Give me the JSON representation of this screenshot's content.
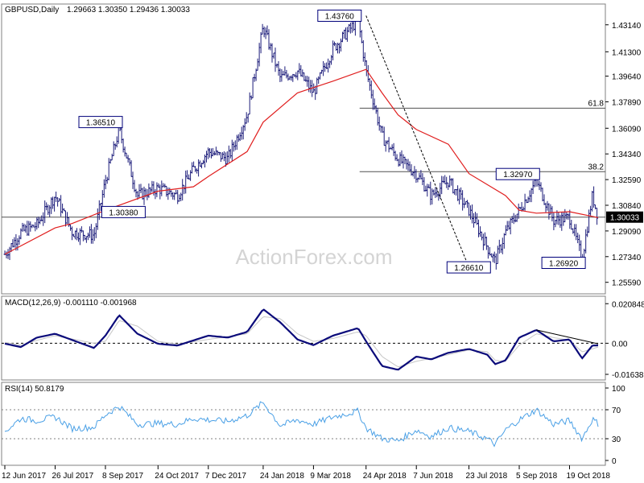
{
  "main_header": {
    "symbol": "GBPUSD,Daily",
    "ohlc": "1.29663 1.30350 1.29436 1.30033"
  },
  "macd_header": "MACD(12,26,9) -0.001110 -0.001968",
  "rsi_header": "RSI(14) 50.8179",
  "watermark": "ActionForex.com",
  "current_price": "1.30033",
  "colors": {
    "background": "#ffffff",
    "price_bars": "#1c1c7a",
    "moving_average": "#e01e1e",
    "macd_line": "#0b0b7a",
    "macd_signal": "#c6c6c6",
    "rsi_line": "#4aa0e6",
    "level_line": "#505050",
    "price_box": "#00007a"
  },
  "chart_data": [
    {
      "panel": "price",
      "type": "candlestick-bars",
      "symbol": "GBPUSD",
      "timeframe": "Daily",
      "y_ticks": [
        "1.43140",
        "1.41300",
        "1.39640",
        "1.37890",
        "1.36090",
        "1.34340",
        "1.32590",
        "1.30840",
        "1.29090",
        "1.27340",
        "1.25590"
      ],
      "ylim": [
        1.2497,
        1.4439
      ],
      "x_tick_labels": [
        "12 Jun 2017",
        "26 Jul 2017",
        "8 Sep 2017",
        "24 Oct 2017",
        "7 Dec 2017",
        "24 Jan 2018",
        "9 Mar 2018",
        "24 Apr 2018",
        "7 Jun 2018",
        "23 Jul 2018",
        "5 Sep 2018",
        "19 Oct 2018"
      ],
      "close_path": [
        [
          "12 Jun 2017",
          1.275
        ],
        [
          "26 Jun 2017",
          1.29
        ],
        [
          "10 Jul 2017",
          1.295
        ],
        [
          "26 Jul 2017",
          1.315
        ],
        [
          "10 Aug 2017",
          1.29
        ],
        [
          "29 Aug 2017",
          1.288
        ],
        [
          "8 Sep 2017",
          1.325
        ],
        [
          "20 Sep 2017",
          1.36
        ],
        [
          "6 Oct 2017",
          1.315
        ],
        [
          "24 Oct 2017",
          1.32
        ],
        [
          "10 Nov 2017",
          1.315
        ],
        [
          "24 Nov 2017",
          1.333
        ],
        [
          "7 Dec 2017",
          1.345
        ],
        [
          "24 Dec 2017",
          1.34
        ],
        [
          "10 Jan 2018",
          1.37
        ],
        [
          "24 Jan 2018",
          1.43
        ],
        [
          "8 Feb 2018",
          1.395
        ],
        [
          "23 Feb 2018",
          1.4
        ],
        [
          "9 Mar 2018",
          1.385
        ],
        [
          "26 Mar 2018",
          1.415
        ],
        [
          "17 Apr 2018",
          1.435
        ],
        [
          "24 Apr 2018",
          1.4
        ],
        [
          "8 May 2018",
          1.355
        ],
        [
          "22 May 2018",
          1.34
        ],
        [
          "7 Jun 2018",
          1.33
        ],
        [
          "20 Jun 2018",
          1.315
        ],
        [
          "5 Jul 2018",
          1.325
        ],
        [
          "23 Jul 2018",
          1.305
        ],
        [
          "8 Aug 2018",
          1.28
        ],
        [
          "15 Aug 2018",
          1.27
        ],
        [
          "24 Aug 2018",
          1.29
        ],
        [
          "5 Sep 2018",
          1.305
        ],
        [
          "20 Sep 2018",
          1.325
        ],
        [
          "5 Oct 2018",
          1.298
        ],
        [
          "19 Oct 2018",
          1.3
        ],
        [
          "30 Oct 2018",
          1.272
        ],
        [
          "8 Nov 2018",
          1.315
        ],
        [
          "13 Nov 2018",
          1.3003
        ]
      ],
      "moving_average_path": [
        [
          "12 Jun 2017",
          1.275
        ],
        [
          "26 Jul 2017",
          1.293
        ],
        [
          "10 Aug 2017",
          1.296
        ],
        [
          "8 Sep 2017",
          1.305
        ],
        [
          "24 Oct 2017",
          1.318
        ],
        [
          "24 Nov 2017",
          1.321
        ],
        [
          "7 Dec 2017",
          1.328
        ],
        [
          "10 Jan 2018",
          1.345
        ],
        [
          "24 Jan 2018",
          1.365
        ],
        [
          "23 Feb 2018",
          1.385
        ],
        [
          "26 Mar 2018",
          1.393
        ],
        [
          "24 Apr 2018",
          1.401
        ],
        [
          "8 May 2018",
          1.385
        ],
        [
          "22 May 2018",
          1.37
        ],
        [
          "7 Jun 2018",
          1.36
        ],
        [
          "5 Jul 2018",
          1.35
        ],
        [
          "23 Jul 2018",
          1.33
        ],
        [
          "24 Aug 2018",
          1.315
        ],
        [
          "5 Sep 2018",
          1.305
        ],
        [
          "20 Sep 2018",
          1.303
        ],
        [
          "19 Oct 2018",
          1.304
        ],
        [
          "13 Nov 2018",
          1.3
        ]
      ],
      "levels": [
        {
          "label": "61.8",
          "value": 1.3746
        },
        {
          "label": "38.2",
          "value": 1.3313
        },
        {
          "label": "",
          "value": 1.30033
        }
      ],
      "trend_lines": [
        {
          "from": [
            "24 Apr 2018",
            1.4376
          ],
          "to": [
            "23 Jul 2018",
            1.2661
          ]
        }
      ],
      "annotations": [
        {
          "text": "1.36510",
          "x": "20 Sep 2017",
          "y": 1.3651
        },
        {
          "text": "1.30380",
          "x": "10 Oct 2017",
          "y": 1.3038
        },
        {
          "text": "1.43760",
          "x": "17 Apr 2018",
          "y": 1.4376
        },
        {
          "text": "1.26610",
          "x": "8 Aug 2018",
          "y": 1.2661
        },
        {
          "text": "1.32970",
          "x": "20 Sep 2018",
          "y": 1.3297
        },
        {
          "text": "1.26920",
          "x": "30 Oct 2018",
          "y": 1.2692
        }
      ]
    },
    {
      "panel": "macd",
      "type": "line",
      "y_ticks": [
        "0.020848",
        "0.00",
        "-0.016389"
      ],
      "ylim": [
        -0.0185,
        0.0235
      ],
      "zero_line": "dashed",
      "series": [
        {
          "name": "MACD(12,26,9)",
          "values": [
            [
              "12 Jun 2017",
              -0.0002
            ],
            [
              "26 Jun 2017",
              -0.002
            ],
            [
              "10 Jul 2017",
              0.003
            ],
            [
              "26 Jul 2017",
              0.005
            ],
            [
              "29 Aug 2017",
              -0.0025
            ],
            [
              "8 Sep 2017",
              0.004
            ],
            [
              "20 Sep 2017",
              0.0148
            ],
            [
              "6 Oct 2017",
              0.005
            ],
            [
              "24 Oct 2017",
              -0.0003
            ],
            [
              "10 Nov 2017",
              -0.0012
            ],
            [
              "7 Dec 2017",
              0.004
            ],
            [
              "24 Dec 2017",
              0.003
            ],
            [
              "10 Jan 2018",
              0.006
            ],
            [
              "24 Jan 2018",
              0.018
            ],
            [
              "8 Feb 2018",
              0.011
            ],
            [
              "23 Feb 2018",
              0.002
            ],
            [
              "9 Mar 2018",
              -0.001
            ],
            [
              "26 Mar 2018",
              0.004
            ],
            [
              "17 Apr 2018",
              0.008
            ],
            [
              "24 Apr 2018",
              0.001
            ],
            [
              "8 May 2018",
              -0.012
            ],
            [
              "22 May 2018",
              -0.014
            ],
            [
              "7 Jun 2018",
              -0.007
            ],
            [
              "20 Jun 2018",
              -0.0085
            ],
            [
              "5 Jul 2018",
              -0.005
            ],
            [
              "23 Jul 2018",
              -0.003
            ],
            [
              "8 Aug 2018",
              -0.006
            ],
            [
              "15 Aug 2018",
              -0.011
            ],
            [
              "24 Aug 2018",
              -0.009
            ],
            [
              "5 Sep 2018",
              0.003
            ],
            [
              "20 Sep 2018",
              0.007
            ],
            [
              "5 Oct 2018",
              0.001
            ],
            [
              "19 Oct 2018",
              0.002
            ],
            [
              "30 Oct 2018",
              -0.008
            ],
            [
              "8 Nov 2018",
              -0.0012
            ],
            [
              "13 Nov 2018",
              -0.0011
            ]
          ]
        },
        {
          "values": [
            [
              "12 Jun 2017",
              0.0005
            ],
            [
              "26 Jun 2017",
              -0.001
            ],
            [
              "10 Jul 2017",
              0.0015
            ],
            [
              "26 Jul 2017",
              0.004
            ],
            [
              "29 Aug 2017",
              0.0
            ],
            [
              "8 Sep 2017",
              0.001
            ],
            [
              "20 Sep 2017",
              0.012
            ],
            [
              "6 Oct 2017",
              0.009
            ],
            [
              "24 Oct 2017",
              0.001
            ],
            [
              "10 Nov 2017",
              -0.0005
            ],
            [
              "7 Dec 2017",
              0.002
            ],
            [
              "24 Dec 2017",
              0.0035
            ],
            [
              "10 Jan 2018",
              0.005
            ],
            [
              "24 Jan 2018",
              0.014
            ],
            [
              "8 Feb 2018",
              0.013
            ],
            [
              "23 Feb 2018",
              0.005
            ],
            [
              "9 Mar 2018",
              0.001
            ],
            [
              "26 Mar 2018",
              0.0025
            ],
            [
              "17 Apr 2018",
              0.006
            ],
            [
              "24 Apr 2018",
              0.004
            ],
            [
              "8 May 2018",
              -0.007
            ],
            [
              "22 May 2018",
              -0.0125
            ],
            [
              "7 Jun 2018",
              -0.0095
            ],
            [
              "20 Jun 2018",
              -0.008
            ],
            [
              "5 Jul 2018",
              -0.006
            ],
            [
              "23 Jul 2018",
              -0.0035
            ],
            [
              "8 Aug 2018",
              -0.0045
            ],
            [
              "15 Aug 2018",
              -0.009
            ],
            [
              "24 Aug 2018",
              -0.0095
            ],
            [
              "5 Sep 2018",
              -0.001
            ],
            [
              "20 Sep 2018",
              0.005
            ],
            [
              "5 Oct 2018",
              0.003
            ],
            [
              "19 Oct 2018",
              0.0015
            ],
            [
              "30 Oct 2018",
              -0.0045
            ],
            [
              "8 Nov 2018",
              -0.003
            ],
            [
              "13 Nov 2018",
              -0.002
            ]
          ]
        }
      ],
      "trend_lines": [
        {
          "from": [
            "20 Sep 2018",
            0.007
          ],
          "to": [
            "13 Nov 2018",
            -0.0003
          ]
        }
      ]
    },
    {
      "panel": "rsi",
      "type": "line",
      "y_ticks": [
        "100",
        "70",
        "30",
        "0"
      ],
      "ylim": [
        0,
        100
      ],
      "levels": [
        70,
        30
      ],
      "series": [
        {
          "name": "RSI(14)",
          "values": [
            [
              "12 Jun 2017",
              40
            ],
            [
              "26 Jun 2017",
              58
            ],
            [
              "10 Jul 2017",
              55
            ],
            [
              "26 Jul 2017",
              60
            ],
            [
              "10 Aug 2017",
              44
            ],
            [
              "29 Aug 2017",
              46
            ],
            [
              "8 Sep 2017",
              63
            ],
            [
              "20 Sep 2017",
              75
            ],
            [
              "6 Oct 2017",
              50
            ],
            [
              "24 Oct 2017",
              51
            ],
            [
              "10 Nov 2017",
              50
            ],
            [
              "24 Nov 2017",
              58
            ],
            [
              "7 Dec 2017",
              56
            ],
            [
              "24 Dec 2017",
              54
            ],
            [
              "10 Jan 2018",
              62
            ],
            [
              "24 Jan 2018",
              80
            ],
            [
              "8 Feb 2018",
              48
            ],
            [
              "23 Feb 2018",
              56
            ],
            [
              "9 Mar 2018",
              50
            ],
            [
              "26 Mar 2018",
              60
            ],
            [
              "17 Apr 2018",
              68
            ],
            [
              "24 Apr 2018",
              45
            ],
            [
              "8 May 2018",
              30
            ],
            [
              "22 May 2018",
              27
            ],
            [
              "7 Jun 2018",
              42
            ],
            [
              "20 Jun 2018",
              33
            ],
            [
              "5 Jul 2018",
              45
            ],
            [
              "23 Jul 2018",
              40
            ],
            [
              "8 Aug 2018",
              30
            ],
            [
              "15 Aug 2018",
              22
            ],
            [
              "24 Aug 2018",
              42
            ],
            [
              "5 Sep 2018",
              56
            ],
            [
              "20 Sep 2018",
              70
            ],
            [
              "5 Oct 2018",
              50
            ],
            [
              "19 Oct 2018",
              55
            ],
            [
              "30 Oct 2018",
              30
            ],
            [
              "8 Nov 2018",
              57
            ],
            [
              "13 Nov 2018",
              50.8
            ]
          ]
        }
      ]
    }
  ]
}
